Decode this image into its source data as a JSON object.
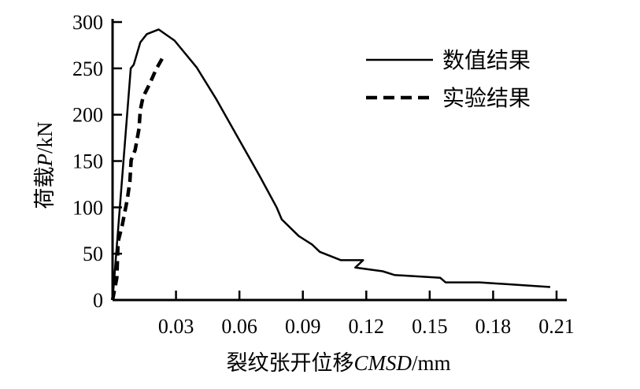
{
  "chart_data": {
    "type": "line",
    "title": "",
    "xlabel_prefix": "裂纹张开位移",
    "xlabel_var": "CMSD",
    "xlabel_unit": "/mm",
    "ylabel_prefix": "荷载",
    "ylabel_var": "P",
    "ylabel_unit": "/kN",
    "xlim": [
      0,
      0.21
    ],
    "ylim": [
      0,
      300
    ],
    "xticks": [
      0.03,
      0.06,
      0.09,
      0.12,
      0.15,
      0.18,
      0.21
    ],
    "xtick_labels": [
      "0.03",
      "0.06",
      "0.09",
      "0.12",
      "0.15",
      "0.18",
      "0.21"
    ],
    "yticks": [
      0,
      50,
      100,
      150,
      200,
      250,
      300
    ],
    "ytick_labels": [
      "0",
      "50",
      "100",
      "150",
      "200",
      "250",
      "300"
    ],
    "grid": false,
    "legend_position": "top-right",
    "series": [
      {
        "name": "数值结果",
        "style": "solid",
        "color": "#000000",
        "x": [
          0,
          0.0086,
          0.01,
          0.0131,
          0.0162,
          0.0218,
          0.0293,
          0.0398,
          0.049,
          0.0584,
          0.0695,
          0.0776,
          0.08,
          0.0881,
          0.0943,
          0.098,
          0.108,
          0.1185,
          0.1148,
          0.1278,
          0.1333,
          0.155,
          0.1575,
          0.1736,
          0.207
        ],
        "y": [
          0,
          250,
          254,
          278,
          287,
          292,
          280,
          251,
          217,
          179,
          134,
          100,
          87,
          69,
          60,
          52,
          43,
          43,
          35,
          31,
          27,
          24,
          19,
          19,
          14
        ]
      },
      {
        "name": "实验结果",
        "style": "dashed",
        "color": "#000000",
        "x": [
          0,
          0.002,
          0.0026,
          0.0045,
          0.007,
          0.0082,
          0.0088,
          0.0107,
          0.0125,
          0.0131,
          0.0144,
          0.0175,
          0.0206,
          0.0243
        ],
        "y": [
          0,
          24,
          63,
          80,
          109,
          128,
          151,
          162,
          185,
          205,
          219,
          233,
          249,
          264
        ]
      }
    ]
  }
}
